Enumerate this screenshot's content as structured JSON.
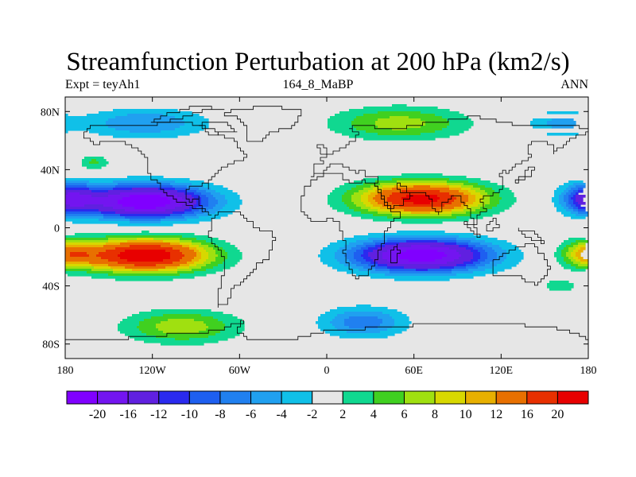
{
  "title": "Streamfunction Perturbation at 200 hPa (km2/s)",
  "subtitle_left": "Expt = teyAh1",
  "subtitle_center": "164_8_MaBP",
  "subtitle_right": "ANN",
  "map": {
    "lon_range": [
      -180,
      180
    ],
    "lat_range": [
      -90,
      90
    ],
    "lon_ticks": [
      {
        "value": -180,
        "label": "180"
      },
      {
        "value": -120,
        "label": "120W"
      },
      {
        "value": -60,
        "label": "60W"
      },
      {
        "value": 0,
        "label": "0"
      },
      {
        "value": 60,
        "label": "60E"
      },
      {
        "value": 120,
        "label": "120E"
      },
      {
        "value": 180,
        "label": "180"
      }
    ],
    "lat_ticks": [
      {
        "value": 80,
        "label": "80N"
      },
      {
        "value": 40,
        "label": "40N"
      },
      {
        "value": 0,
        "label": "0"
      },
      {
        "value": -40,
        "label": "40S"
      },
      {
        "value": -80,
        "label": "80S"
      }
    ],
    "background_color": "#e6e6e6",
    "coastline_color": "#000000"
  },
  "colorbar": {
    "colors": [
      "#8000ff",
      "#7315f0",
      "#6020e0",
      "#2a2aef",
      "#1e5ff0",
      "#2080f0",
      "#20a0f0",
      "#10c0e8",
      "#e6e6e6",
      "#10d890",
      "#40d020",
      "#a0e010",
      "#d8d800",
      "#e8b000",
      "#e87000",
      "#e83000",
      "#e80000"
    ],
    "labels": [
      "-20",
      "-16",
      "-12",
      "-10",
      "-8",
      "-6",
      "-4",
      "-2",
      "2",
      "4",
      "6",
      "8",
      "10",
      "12",
      "16",
      "20"
    ],
    "levels": [
      -20,
      -16,
      -12,
      -10,
      -8,
      -6,
      -4,
      -2,
      2,
      4,
      6,
      8,
      10,
      12,
      16,
      20
    ]
  },
  "field_centers": [
    {
      "lon": -125,
      "lat": 18,
      "amp": -24,
      "sx": 42,
      "sy": 11
    },
    {
      "lon": -125,
      "lat": -19,
      "amp": 24,
      "sx": 42,
      "sy": 11
    },
    {
      "lon": 65,
      "lat": 20,
      "amp": 22,
      "sx": 42,
      "sy": 11
    },
    {
      "lon": 65,
      "lat": -19,
      "amp": -23,
      "sx": 45,
      "sy": 11
    },
    {
      "lon": 182,
      "lat": 20,
      "amp": -14,
      "sx": 18,
      "sy": 10
    },
    {
      "lon": 182,
      "lat": -18,
      "amp": 11,
      "sx": 18,
      "sy": 9
    },
    {
      "lon": -125,
      "lat": 72,
      "amp": -6,
      "sx": 42,
      "sy": 10
    },
    {
      "lon": -100,
      "lat": -68,
      "amp": 7.5,
      "sx": 38,
      "sy": 11
    },
    {
      "lon": 50,
      "lat": 72,
      "amp": 7,
      "sx": 45,
      "sy": 11
    },
    {
      "lon": 25,
      "lat": -65,
      "amp": -7.5,
      "sx": 28,
      "sy": 10
    },
    {
      "lon": 160,
      "lat": 72,
      "amp": -4.5,
      "sx": 22,
      "sy": 9
    },
    {
      "lon": -160,
      "lat": 45,
      "amp": 4.5,
      "sx": 10,
      "sy": 5
    },
    {
      "lon": 160,
      "lat": -40,
      "amp": 3.5,
      "sx": 12,
      "sy": 5
    }
  ]
}
